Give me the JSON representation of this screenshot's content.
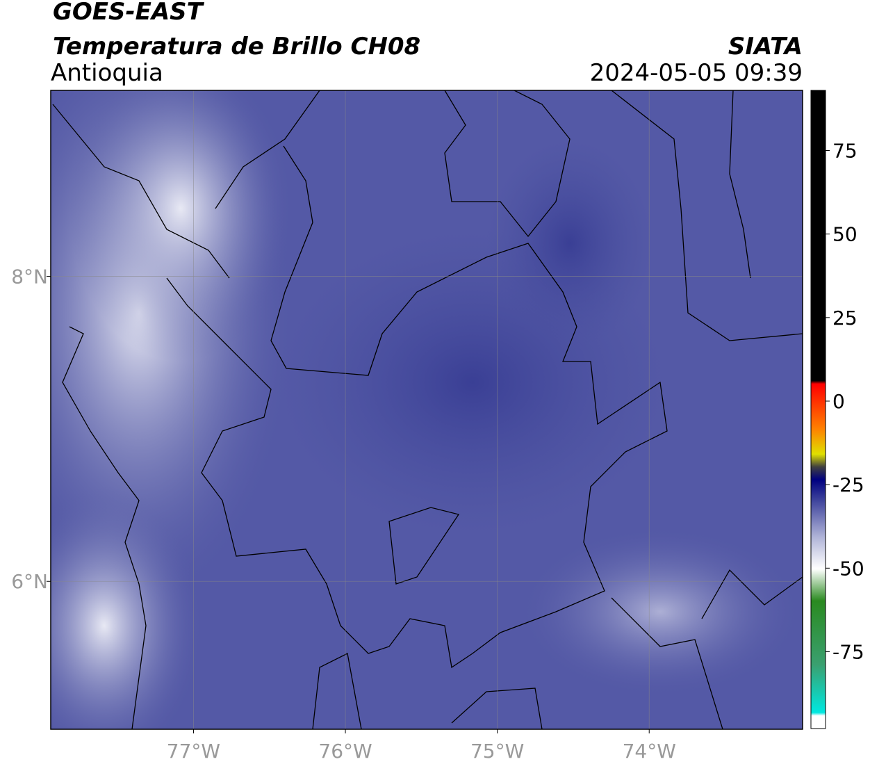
{
  "header": {
    "title": "GOES-EAST",
    "subtitle": "Temperatura de Brillo CH08",
    "region": "Antioquia",
    "source": "SIATA",
    "timestamp": "2024-05-05 09:39"
  },
  "map": {
    "xlim": [
      -77.94,
      -72.99
    ],
    "ylim": [
      5.03,
      9.22
    ],
    "xticks": [
      {
        "value": -77,
        "label": "77°W"
      },
      {
        "value": -76,
        "label": "76°W"
      },
      {
        "value": -75,
        "label": "75°W"
      },
      {
        "value": -74,
        "label": "74°W"
      }
    ],
    "yticks": [
      {
        "value": 8,
        "label": "8°N"
      },
      {
        "value": 6,
        "label": "6°N"
      }
    ],
    "grid": true
  },
  "colorbar": {
    "lim": [
      -98,
      93
    ],
    "ticks": [
      75,
      50,
      25,
      0,
      -25,
      -50,
      -75
    ]
  }
}
